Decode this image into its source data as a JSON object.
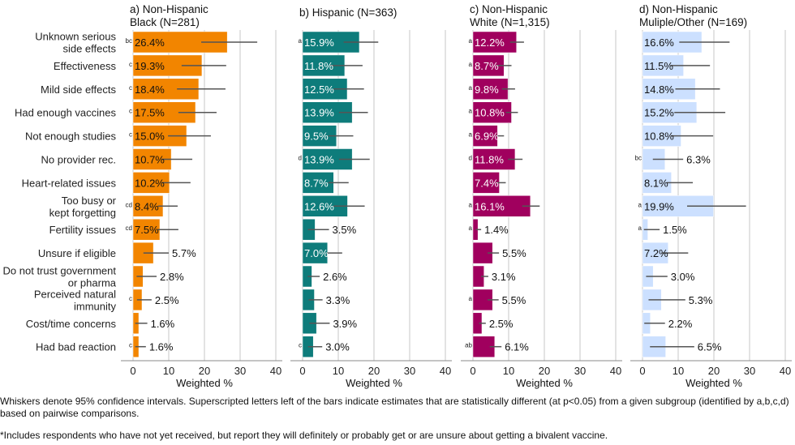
{
  "chart_data": {
    "type": "bar",
    "orientation": "horizontal",
    "categories": [
      [
        "Unknown serious",
        "side effects"
      ],
      [
        "Effectiveness"
      ],
      [
        "Mild side effects"
      ],
      [
        "Had enough vaccines"
      ],
      [
        "Not enough studies"
      ],
      [
        "No provider rec."
      ],
      [
        "Heart-related issues"
      ],
      [
        "Too busy or",
        "kept forgetting"
      ],
      [
        "Fertility issues"
      ],
      [
        "Unsure if eligible"
      ],
      [
        "Do not trust government",
        "or pharma"
      ],
      [
        "Perceived natural",
        "immunity"
      ],
      [
        "Cost/time concerns"
      ],
      [
        "Had bad reaction"
      ]
    ],
    "xlabel": "Weighted %",
    "xlim": [
      0,
      40
    ],
    "xticks": [
      0,
      10,
      20,
      30,
      40
    ],
    "grid": true,
    "panels": [
      {
        "title": [
          "a) Non-Hispanic",
          "Black (N=281)"
        ],
        "color": "#F28500",
        "label_color": "#111111",
        "values": [
          26.4,
          19.3,
          18.4,
          17.5,
          15.0,
          10.7,
          10.2,
          8.4,
          7.5,
          5.7,
          2.8,
          2.5,
          1.6,
          1.6
        ],
        "labels": [
          "26.4%",
          "19.3%",
          "18.4%",
          "17.5%",
          "15.0%",
          "10.7%",
          "10.2%",
          "8.4%",
          "7.5%",
          "5.7%",
          "2.8%",
          "2.5%",
          "1.6%",
          "1.6%"
        ],
        "ci_low": [
          19.1,
          13.6,
          12.3,
          12.7,
          9.8,
          8.0,
          8.0,
          7.0,
          7.0,
          2.9,
          1.0,
          1.1,
          0.6,
          0.6
        ],
        "ci_high": [
          34.8,
          26.1,
          25.9,
          23.4,
          21.8,
          16.6,
          16.1,
          12.5,
          12.7,
          10.0,
          6.6,
          5.2,
          4.0,
          3.6
        ],
        "superscripts": [
          "bc",
          "c",
          "c",
          "c",
          "c",
          "",
          "",
          "cd",
          "cd",
          "",
          "",
          "c",
          "",
          "c"
        ]
      },
      {
        "title": [
          "b) Hispanic (N=363)"
        ],
        "color": "#0E7C7B",
        "label_color": "#ffffff",
        "values": [
          15.9,
          11.8,
          12.5,
          13.9,
          9.5,
          13.9,
          8.7,
          12.6,
          3.5,
          7.0,
          2.6,
          3.3,
          3.9,
          3.0
        ],
        "labels": [
          "15.9%",
          "11.8%",
          "12.5%",
          "13.9%",
          "9.5%",
          "13.9%",
          "8.7%",
          "12.6%",
          "3.5%",
          "7.0%",
          "2.6%",
          "3.3%",
          "3.9%",
          "3.0%"
        ],
        "ci_low": [
          11.5,
          7.7,
          8.7,
          10.2,
          7.2,
          10.2,
          7.2,
          8.7,
          1.5,
          6.8,
          1.4,
          1.7,
          1.9,
          1.5
        ],
        "ci_high": [
          21.2,
          16.8,
          17.2,
          18.3,
          14.2,
          18.8,
          12.9,
          17.4,
          7.4,
          11.1,
          4.8,
          5.6,
          7.6,
          5.5
        ],
        "superscripts": [
          "a",
          "",
          "",
          "",
          "",
          "d",
          "",
          "",
          "",
          "",
          "",
          "",
          "",
          "c"
        ]
      },
      {
        "title": [
          "c) Non-Hispanic",
          "White (N=1,315)"
        ],
        "color": "#A0005E",
        "label_color": "#ffffff",
        "values": [
          12.2,
          8.7,
          9.8,
          10.8,
          6.9,
          11.8,
          7.4,
          16.1,
          1.4,
          5.5,
          3.1,
          5.5,
          2.5,
          6.1
        ],
        "labels": [
          "12.2%",
          "8.7%",
          "9.8%",
          "10.8%",
          "6.9%",
          "11.8%",
          "7.4%",
          "16.1%",
          "1.4%",
          "5.5%",
          "3.1%",
          "5.5%",
          "2.5%",
          "6.1%"
        ],
        "ci_low": [
          10.4,
          6.6,
          8.1,
          9.2,
          6.6,
          9.8,
          6.6,
          13.8,
          0.8,
          4.1,
          2.3,
          4.1,
          1.7,
          4.7
        ],
        "ci_high": [
          14.3,
          10.8,
          11.8,
          12.6,
          8.7,
          13.9,
          9.2,
          18.7,
          2.3,
          7.3,
          4.3,
          7.2,
          3.6,
          8.0
        ],
        "superscripts": [
          "a",
          "a",
          "a",
          "a",
          "a",
          "d",
          "",
          "a",
          "a",
          "",
          "",
          "a",
          "",
          "ab"
        ]
      },
      {
        "title": [
          "d) Non-Hispanic",
          "Muliple/Other (N=169)"
        ],
        "color": "#CCE0FF",
        "label_color": "#111111",
        "values": [
          16.6,
          11.5,
          14.8,
          15.2,
          10.8,
          6.3,
          8.1,
          19.9,
          1.5,
          7.2,
          3.0,
          5.3,
          2.2,
          6.5
        ],
        "labels": [
          "16.6%",
          "11.5%",
          "14.8%",
          "15.2%",
          "10.8%",
          "6.3%",
          "8.1%",
          "19.9%",
          "1.5%",
          "7.2%",
          "3.0%",
          "5.3%",
          "2.2%",
          "6.5%"
        ],
        "ci_low": [
          10.3,
          7.8,
          9.2,
          8.9,
          8.0,
          2.9,
          6.7,
          12.5,
          0.4,
          5.5,
          1.0,
          1.7,
          0.5,
          2.1
        ],
        "ci_high": [
          24.4,
          18.9,
          21.7,
          23.2,
          19.8,
          11.4,
          14.1,
          29.0,
          4.8,
          12.8,
          7.0,
          12.0,
          6.3,
          14.5
        ],
        "superscripts": [
          "",
          "",
          "",
          "",
          "",
          "bc",
          "",
          "a",
          "a",
          "",
          "",
          "",
          "",
          ""
        ]
      }
    ],
    "footnotes": [
      "Whiskers denote 95% confidence intervals. Superscripted letters left of the bars indicate estimates that are statistically different (at p<0.05) from a given subgroup (identified by a,b,c,d) based on pairwise comparisons.",
      "*Includes respondents who have not yet received, but report they will definitely or probably get or are unsure about getting a bivalent vaccine."
    ]
  }
}
